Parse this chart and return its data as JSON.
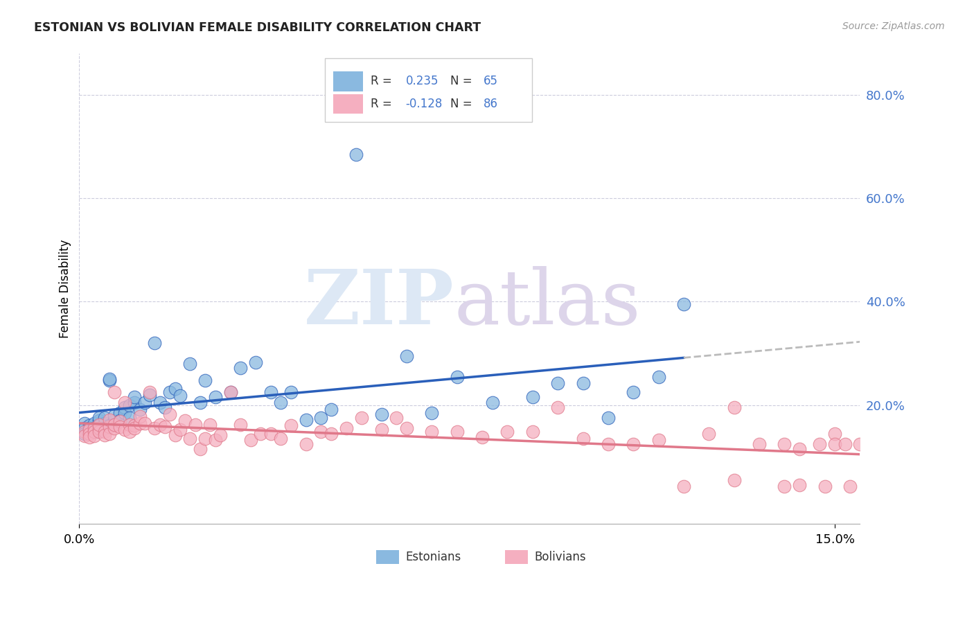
{
  "title": "ESTONIAN VS BOLIVIAN FEMALE DISABILITY CORRELATION CHART",
  "source": "Source: ZipAtlas.com",
  "ylabel": "Female Disability",
  "right_yticks": [
    "80.0%",
    "60.0%",
    "40.0%",
    "20.0%"
  ],
  "right_ytick_vals": [
    0.8,
    0.6,
    0.4,
    0.2
  ],
  "x_min": 0.0,
  "x_max": 0.155,
  "y_min": -0.03,
  "y_max": 0.88,
  "estonian_color": "#8ab9e0",
  "bolivian_color": "#f5afc0",
  "estonian_line_color": "#2a5fba",
  "bolivian_line_color": "#e0788a",
  "trendline_ext_color": "#bbbbbb",
  "legend_R_estonian": "0.235",
  "legend_N_estonian": "65",
  "legend_R_bolivian": "-0.128",
  "legend_N_bolivian": "86",
  "estonian_x": [
    0.001,
    0.001,
    0.001,
    0.002,
    0.002,
    0.002,
    0.003,
    0.003,
    0.003,
    0.004,
    0.004,
    0.004,
    0.004,
    0.005,
    0.005,
    0.005,
    0.006,
    0.006,
    0.006,
    0.007,
    0.007,
    0.007,
    0.008,
    0.008,
    0.009,
    0.009,
    0.01,
    0.01,
    0.011,
    0.011,
    0.012,
    0.013,
    0.014,
    0.015,
    0.016,
    0.017,
    0.018,
    0.019,
    0.02,
    0.022,
    0.024,
    0.025,
    0.027,
    0.03,
    0.032,
    0.035,
    0.038,
    0.04,
    0.042,
    0.045,
    0.048,
    0.05,
    0.055,
    0.06,
    0.065,
    0.07,
    0.075,
    0.082,
    0.09,
    0.095,
    0.1,
    0.105,
    0.11,
    0.115,
    0.12
  ],
  "estonian_y": [
    0.165,
    0.155,
    0.145,
    0.16,
    0.15,
    0.155,
    0.165,
    0.155,
    0.148,
    0.17,
    0.175,
    0.16,
    0.148,
    0.165,
    0.175,
    0.155,
    0.16,
    0.248,
    0.25,
    0.17,
    0.18,
    0.162,
    0.185,
    0.17,
    0.195,
    0.185,
    0.2,
    0.175,
    0.205,
    0.215,
    0.192,
    0.205,
    0.22,
    0.32,
    0.205,
    0.195,
    0.225,
    0.232,
    0.218,
    0.28,
    0.205,
    0.248,
    0.215,
    0.225,
    0.272,
    0.282,
    0.225,
    0.205,
    0.225,
    0.172,
    0.175,
    0.192,
    0.685,
    0.182,
    0.295,
    0.185,
    0.255,
    0.205,
    0.215,
    0.242,
    0.242,
    0.175,
    0.225,
    0.255,
    0.395
  ],
  "bolivian_x": [
    0.001,
    0.001,
    0.002,
    0.002,
    0.002,
    0.003,
    0.003,
    0.003,
    0.004,
    0.004,
    0.004,
    0.005,
    0.005,
    0.006,
    0.006,
    0.006,
    0.007,
    0.007,
    0.007,
    0.008,
    0.008,
    0.009,
    0.009,
    0.01,
    0.01,
    0.011,
    0.011,
    0.012,
    0.012,
    0.013,
    0.014,
    0.015,
    0.016,
    0.017,
    0.018,
    0.019,
    0.02,
    0.021,
    0.022,
    0.023,
    0.024,
    0.025,
    0.026,
    0.027,
    0.028,
    0.03,
    0.032,
    0.034,
    0.036,
    0.038,
    0.04,
    0.042,
    0.045,
    0.048,
    0.05,
    0.053,
    0.056,
    0.06,
    0.063,
    0.065,
    0.07,
    0.075,
    0.08,
    0.085,
    0.09,
    0.095,
    0.1,
    0.105,
    0.11,
    0.115,
    0.12,
    0.125,
    0.13,
    0.135,
    0.14,
    0.143,
    0.147,
    0.15,
    0.153,
    0.155,
    0.13,
    0.14,
    0.143,
    0.148,
    0.15,
    0.152
  ],
  "bolivian_y": [
    0.148,
    0.14,
    0.152,
    0.145,
    0.138,
    0.155,
    0.148,
    0.14,
    0.155,
    0.148,
    0.162,
    0.148,
    0.142,
    0.158,
    0.172,
    0.145,
    0.225,
    0.155,
    0.162,
    0.168,
    0.158,
    0.152,
    0.205,
    0.162,
    0.148,
    0.16,
    0.155,
    0.165,
    0.178,
    0.165,
    0.225,
    0.155,
    0.162,
    0.158,
    0.182,
    0.142,
    0.152,
    0.17,
    0.135,
    0.162,
    0.115,
    0.135,
    0.162,
    0.132,
    0.142,
    0.225,
    0.162,
    0.132,
    0.145,
    0.145,
    0.135,
    0.16,
    0.125,
    0.148,
    0.145,
    0.155,
    0.175,
    0.152,
    0.175,
    0.155,
    0.148,
    0.148,
    0.138,
    0.148,
    0.148,
    0.195,
    0.135,
    0.125,
    0.125,
    0.132,
    0.042,
    0.145,
    0.055,
    0.125,
    0.125,
    0.115,
    0.125,
    0.145,
    0.042,
    0.125,
    0.195,
    0.042,
    0.045,
    0.042,
    0.125,
    0.125
  ]
}
